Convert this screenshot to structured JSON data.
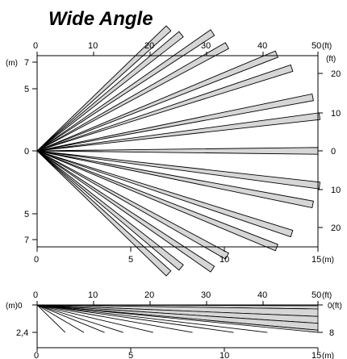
{
  "title": "Wide Angle",
  "top_view": {
    "ft_ticks_top": [
      "0",
      "10",
      "20",
      "30",
      "40",
      "50"
    ],
    "ft_unit_top": "(ft)",
    "m_ticks_bottom": [
      "0",
      "5",
      "10",
      "15"
    ],
    "m_unit_bottom": "(m)",
    "left_ticks": [
      "7",
      "5",
      "0",
      "5",
      "7"
    ],
    "left_unit": "(m)",
    "right_unit": "(ft)",
    "right_ticks": [
      "20",
      "10",
      "0",
      "10",
      "20"
    ]
  },
  "side_view": {
    "ft_ticks_top": [
      "0",
      "10",
      "20",
      "30",
      "40",
      "50"
    ],
    "ft_unit_top": "(ft)",
    "m_ticks_bottom": [
      "0",
      "5",
      "10",
      "15"
    ],
    "m_unit_bottom": "(m)",
    "left_label_top": "(m)0",
    "left_label_bottom": "2,4",
    "right_label_top": "0(ft)",
    "right_label_bottom": "8"
  },
  "chart_data": {
    "type": "diagram",
    "description_free": true,
    "top_view_beam_angles_deg": [
      -43,
      -39,
      -34,
      -29,
      -22,
      -18,
      -11,
      -7,
      0,
      7,
      11,
      18,
      22,
      29,
      34,
      39,
      43
    ],
    "top_view_beam_lengths_m": [
      9.6,
      9.9,
      11.3,
      11.6,
      13.8,
      14.3,
      15.0,
      15.2,
      15.0,
      15.2,
      15.0,
      14.3,
      13.8,
      11.6,
      11.3,
      9.9,
      9.6
    ],
    "side_view_long_beams_end_m": [
      [
        15,
        0.35
      ],
      [
        15,
        1.0
      ],
      [
        15,
        1.6
      ],
      [
        15,
        2.2
      ]
    ],
    "side_view_short_beams_end_m": [
      [
        1.5,
        2.4
      ],
      [
        2.5,
        2.4
      ],
      [
        3.6,
        2.4
      ],
      [
        4.6,
        2.4
      ],
      [
        6.2,
        2.4
      ],
      [
        8.3,
        2.4
      ],
      [
        10.5,
        2.4
      ],
      [
        12.3,
        2.4
      ]
    ]
  }
}
